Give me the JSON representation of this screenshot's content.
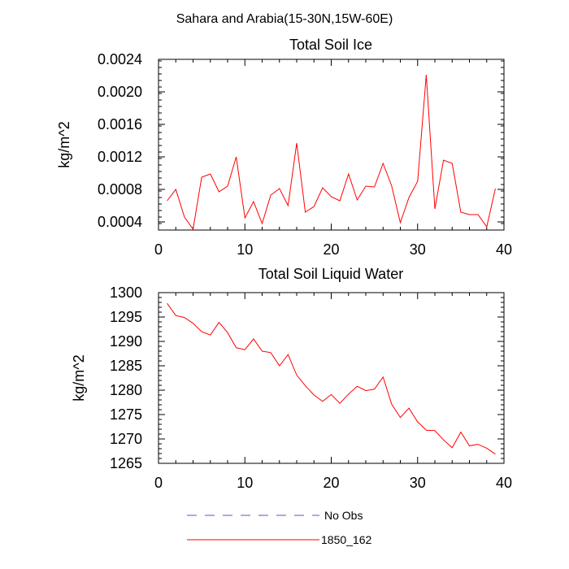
{
  "page": {
    "super_title": "Sahara and Arabia(15-30N,15W-60E)"
  },
  "colors": {
    "series_line": "#ff0000",
    "no_obs_line": "#5555cc",
    "axis": "#000000",
    "background": "#ffffff"
  },
  "chart_data": [
    {
      "type": "line",
      "title": "Total Soil Ice",
      "xlabel": "",
      "ylabel": "kg/m^2",
      "xlim": [
        0,
        40
      ],
      "ylim": [
        0.0003,
        0.0024
      ],
      "xticks": [
        0,
        10,
        20,
        30,
        40
      ],
      "yticks": [
        0.0004,
        0.0008,
        0.0012,
        0.0016,
        0.002,
        0.0024
      ],
      "ytick_labels": [
        "0.0004",
        "0.0008",
        "0.0012",
        "0.0016",
        "0.0020",
        "0.0024"
      ],
      "grid": false,
      "series": [
        {
          "name": "1850_162",
          "x": [
            1,
            2,
            3,
            4,
            5,
            6,
            7,
            8,
            9,
            10,
            11,
            12,
            13,
            14,
            15,
            16,
            17,
            18,
            19,
            20,
            21,
            22,
            23,
            24,
            25,
            26,
            27,
            28,
            29,
            30,
            31,
            32,
            33,
            34,
            35,
            36,
            37,
            38,
            39
          ],
          "values": [
            0.00066,
            0.0008,
            0.00046,
            0.00031,
            0.00095,
            0.00099,
            0.00077,
            0.00084,
            0.0012,
            0.00045,
            0.00065,
            0.00038,
            0.00073,
            0.00081,
            0.0006,
            0.00137,
            0.00052,
            0.00059,
            0.00082,
            0.00071,
            0.00066,
            0.00099,
            0.00067,
            0.00084,
            0.00083,
            0.00112,
            0.00084,
            0.00039,
            0.0007,
            0.0009,
            0.00221,
            0.00056,
            0.00116,
            0.00112,
            0.00052,
            0.00049,
            0.00049,
            0.00034,
            0.00081
          ]
        }
      ]
    },
    {
      "type": "line",
      "title": "Total Soil Liquid Water",
      "xlabel": "",
      "ylabel": "kg/m^2",
      "xlim": [
        0,
        40
      ],
      "ylim": [
        1265,
        1300
      ],
      "xticks": [
        0,
        10,
        20,
        30,
        40
      ],
      "yticks": [
        1265,
        1270,
        1275,
        1280,
        1285,
        1290,
        1295,
        1300
      ],
      "ytick_labels": [
        "1265",
        "1270",
        "1275",
        "1280",
        "1285",
        "1290",
        "1295",
        "1300"
      ],
      "grid": false,
      "series": [
        {
          "name": "1850_162",
          "x": [
            1,
            2,
            3,
            4,
            5,
            6,
            7,
            8,
            9,
            10,
            11,
            12,
            13,
            14,
            15,
            16,
            17,
            18,
            19,
            20,
            21,
            22,
            23,
            24,
            25,
            26,
            27,
            28,
            29,
            30,
            31,
            32,
            33,
            34,
            35,
            36,
            37,
            38,
            39
          ],
          "values": [
            1297.8,
            1295.3,
            1294.9,
            1293.7,
            1292.0,
            1291.3,
            1293.9,
            1291.8,
            1288.7,
            1288.3,
            1290.5,
            1288.0,
            1287.7,
            1285.0,
            1287.3,
            1283.1,
            1280.9,
            1279.0,
            1277.7,
            1279.1,
            1277.3,
            1279.2,
            1280.8,
            1279.9,
            1280.2,
            1282.7,
            1277.1,
            1274.4,
            1276.3,
            1273.5,
            1271.8,
            1271.7,
            1269.8,
            1268.2,
            1271.4,
            1268.6,
            1268.9,
            1268.1,
            1266.9
          ]
        }
      ]
    }
  ],
  "legend": {
    "placement": "bottom",
    "items": [
      {
        "label": "No Obs",
        "style": "dashed",
        "color": "#5555cc"
      },
      {
        "label": "1850_162",
        "style": "solid",
        "color": "#ff0000"
      }
    ]
  }
}
